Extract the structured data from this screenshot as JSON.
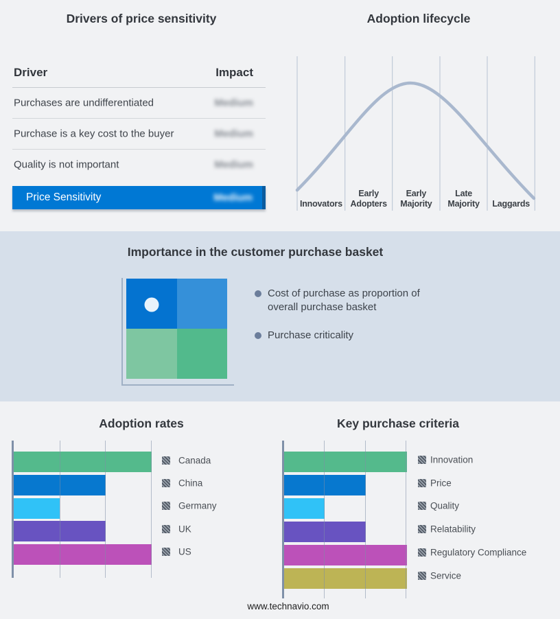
{
  "page": {
    "background": "#f1f2f4",
    "band_background": "#d6dfea",
    "footer": "www.technavio.com",
    "accent_blue": "#0078d4"
  },
  "basket_panel": {
    "title": "Importance in the customer purchase basket",
    "bullets": [
      "Cost of purchase as proportion of overall purchase basket",
      "Purchase criticality"
    ],
    "quadrant": {
      "top_left": "#0473d0",
      "top_right": "#3590d9",
      "bottom_left": "#7ec6a1",
      "bottom_right": "#52ba8c",
      "dot_color": "#e9f3fb",
      "axis_color": "#9fb0c5"
    }
  },
  "chart_data": [
    {
      "type": "table",
      "title": "Drivers of price sensitivity",
      "columns": [
        "Driver",
        "Impact"
      ],
      "rows": [
        [
          "Purchases are undifferentiated",
          "Medium"
        ],
        [
          "Purchase is a key cost to the buyer",
          "Medium"
        ],
        [
          "Quality is not important",
          "Medium"
        ],
        [
          "Price Sensitivity",
          "Medium"
        ]
      ],
      "note": "Impact values are shown blurred; final row is a blue highlighted summary bar"
    },
    {
      "type": "line",
      "title": "Adoption lifecycle",
      "categories": [
        "Innovators",
        "Early Adopters",
        "Early Majority",
        "Late Majority",
        "Laggards"
      ],
      "description": "Bell-shaped adoption curve, unlabeled y-axis, peak near Early Majority",
      "peak_category": "Early Majority",
      "relative_heights": [
        0.15,
        0.55,
        1.0,
        0.55,
        0.1
      ],
      "curve_color": "#a9b8ce",
      "grid": true,
      "legend": false
    },
    {
      "type": "bar",
      "orientation": "horizontal",
      "title": "Adoption rates",
      "categories": [
        "Canada",
        "China",
        "Germany",
        "UK",
        "US"
      ],
      "values": [
        3,
        2,
        1,
        2,
        3
      ],
      "value_note": "axis unlabeled; values estimated in gridline units",
      "xlim": [
        0,
        3
      ],
      "colors": [
        "#54ba8c",
        "#0778cf",
        "#30c2f7",
        "#6853c1",
        "#bc51b9"
      ],
      "legend_position": "right",
      "grid": true
    },
    {
      "type": "bar",
      "orientation": "horizontal",
      "title": "Key purchase criteria",
      "categories": [
        "Innovation",
        "Price",
        "Quality",
        "Relatability",
        "Regulatory Compliance",
        "Service"
      ],
      "values": [
        3,
        2,
        1,
        2,
        3,
        3
      ],
      "value_note": "axis unlabeled; values estimated in gridline units",
      "xlim": [
        0,
        3
      ],
      "colors": [
        "#54ba8c",
        "#0778cf",
        "#30c2f7",
        "#6853c1",
        "#bc51b9",
        "#bdb455"
      ],
      "legend_position": "right",
      "grid": true
    }
  ]
}
